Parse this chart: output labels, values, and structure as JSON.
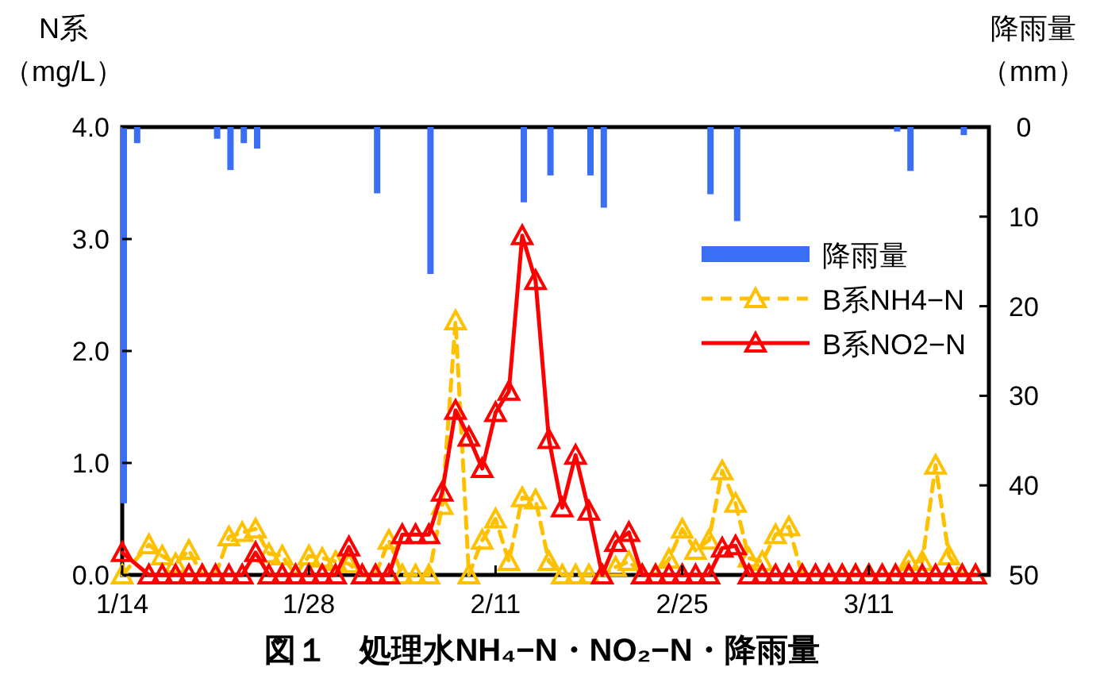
{
  "chart_data": {
    "type": "line",
    "title": "図１　処理水NH₄−N・NO₂−N・降雨量",
    "ylabel": "N系（mg/L）",
    "y2label": "降雨量（mm）",
    "x": [
      "--01-14",
      "--01-15",
      "--01-16",
      "--01-17",
      "--01-18",
      "--01-19",
      "--01-20",
      "--01-21",
      "--01-22",
      "--01-23",
      "--01-24",
      "--01-25",
      "--01-26",
      "--01-27",
      "--01-28",
      "--01-29",
      "--01-30",
      "--01-31",
      "--02-01",
      "--02-02",
      "--02-03",
      "--02-04",
      "--02-05",
      "--02-06",
      "--02-07",
      "--02-08",
      "--02-09",
      "--02-10",
      "--02-11",
      "--02-12",
      "--02-13",
      "--02-14",
      "--02-15",
      "--02-16",
      "--02-17",
      "--02-18",
      "--02-19",
      "--02-20",
      "--02-21",
      "--02-22",
      "--02-23",
      "--02-24",
      "--02-25",
      "--02-26",
      "--02-27",
      "--02-28",
      "--03-01",
      "--03-02",
      "--03-03",
      "--03-04",
      "--03-05",
      "--03-06",
      "--03-07",
      "--03-08",
      "--03-09",
      "--03-10",
      "--03-11",
      "--03-12",
      "--03-13",
      "--03-14",
      "--03-15",
      "--03-16",
      "--03-17",
      "--03-18",
      "--03-19"
    ],
    "xlim": [
      "--01-14",
      "--03-20"
    ],
    "xticks": [
      {
        "value": "--01-14",
        "label": "1/14"
      },
      {
        "value": "--01-28",
        "label": "1/28"
      },
      {
        "value": "--02-11",
        "label": "2/11"
      },
      {
        "value": "--02-25",
        "label": "2/25"
      },
      {
        "value": "--03-11",
        "label": "3/11"
      }
    ],
    "ylim": [
      0,
      4
    ],
    "yticks": [
      {
        "value": 0,
        "label": "0.0"
      },
      {
        "value": 1,
        "label": "1.0"
      },
      {
        "value": 2,
        "label": "2.0"
      },
      {
        "value": 3,
        "label": "3.0"
      },
      {
        "value": 4,
        "label": "4.0"
      }
    ],
    "y2lim": [
      50,
      0
    ],
    "y2ticks": [
      0,
      10,
      20,
      30,
      40,
      50
    ],
    "legend": "right",
    "grid": false,
    "series": [
      {
        "name": "降雨量",
        "type": "bar",
        "axis": "y2",
        "color": "#3a6ff5",
        "values": [
          42,
          1.8,
          0,
          0,
          0,
          0,
          0,
          1.3,
          4.8,
          1.8,
          2.4,
          0,
          0,
          0,
          0,
          0,
          0,
          0,
          0,
          7.4,
          0,
          0,
          0,
          16.4,
          0,
          0,
          0,
          0,
          0,
          0,
          8.4,
          0,
          5.4,
          0,
          0,
          5.4,
          9,
          0,
          0,
          0,
          0,
          0,
          0,
          0,
          7.5,
          0,
          10.5,
          0,
          0,
          0,
          0,
          0,
          0,
          0,
          0,
          0,
          0,
          0,
          0.5,
          4.9,
          0,
          0,
          0,
          0.9,
          0
        ]
      },
      {
        "name": "B系NH4−N",
        "color": "#ffc000",
        "marker": "triangle",
        "line_style": "dashed",
        "values": [
          0,
          null,
          0.27,
          0.17,
          0.1,
          0.22,
          0,
          0,
          0.34,
          0.38,
          0.41,
          0.19,
          0.17,
          0,
          0.17,
          0.15,
          0.12,
          0.1,
          0,
          0,
          0.31,
          0,
          0,
          0,
          0.62,
          2.27,
          0,
          0.31,
          0.5,
          0.12,
          0.69,
          0.67,
          0.12,
          0,
          0,
          0,
          0,
          0.07,
          0.12,
          0,
          0,
          0.14,
          0.41,
          0.22,
          0.31,
          0.93,
          0.64,
          0.15,
          0.12,
          0.36,
          0.43,
          0,
          0,
          0,
          0,
          0,
          0,
          0,
          0,
          0.12,
          0.12,
          0.98,
          0.17,
          0,
          0
        ]
      },
      {
        "name": "B系NO2−N",
        "color": "#ff0000",
        "marker": "triangle",
        "line_style": "solid",
        "values": [
          0.2,
          null,
          0,
          0,
          0,
          0,
          0,
          0,
          0,
          0,
          0.2,
          0,
          0,
          0,
          0,
          0,
          0,
          0.25,
          0,
          0,
          0,
          0.36,
          0.36,
          0.36,
          0.74,
          1.47,
          1.23,
          0.95,
          1.45,
          1.64,
          3.03,
          2.63,
          1.21,
          0.6,
          1.07,
          0.57,
          0,
          0.29,
          0.38,
          0,
          0,
          0,
          0,
          0,
          0,
          0.24,
          0.26,
          0,
          0,
          0,
          0,
          0,
          0,
          0,
          0,
          0,
          0,
          0,
          0,
          0,
          0,
          0,
          0,
          0,
          0
        ]
      }
    ]
  }
}
